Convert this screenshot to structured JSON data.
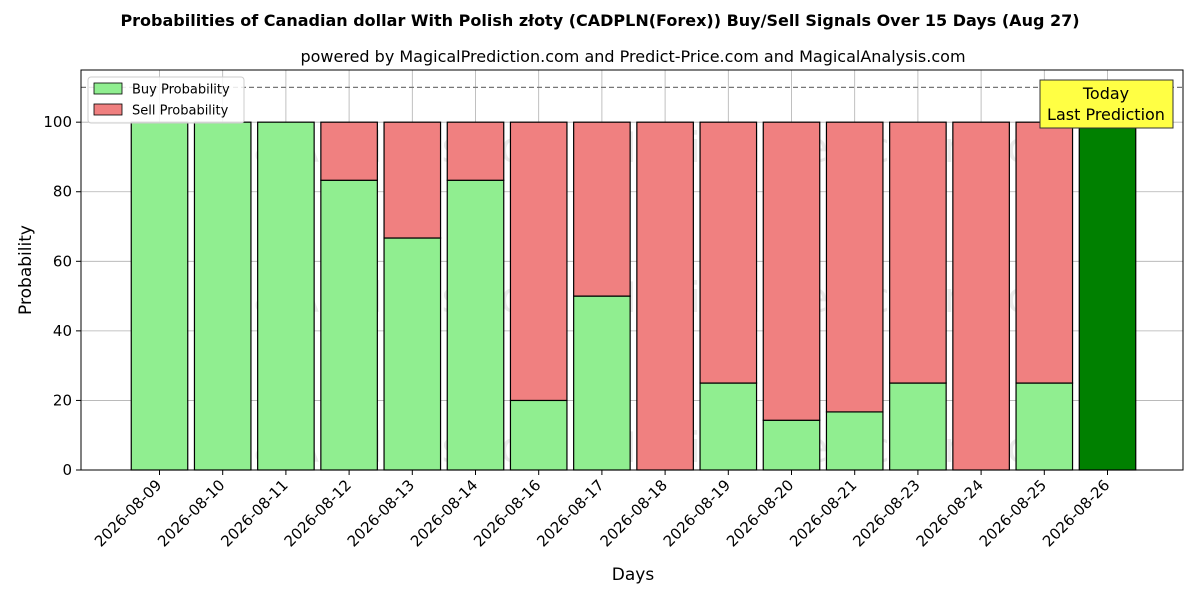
{
  "title": "Probabilities of Canadian dollar With Polish złoty (CADPLN(Forex)) Buy/Sell Signals Over 15 Days (Aug 27)",
  "subtitle": "powered by MagicalPrediction.com and Predict-Price.com and MagicalAnalysis.com",
  "watermarks": [
    "MagicalAnalysis.com",
    "MagicalPrediction.com"
  ],
  "today_box": {
    "line1": "Today",
    "line2": "Last Prediction",
    "color": "#ffff44"
  },
  "colors": {
    "buy": "#90ee90",
    "sell": "#f08080",
    "today": "#008000"
  },
  "chart_data": {
    "type": "bar",
    "stacked": true,
    "xlabel": "Days",
    "ylabel": "Probability",
    "ylim": [
      0,
      115
    ],
    "yticks": [
      0,
      20,
      40,
      60,
      80,
      100
    ],
    "reference_line": 110,
    "grid": true,
    "legend_position": "top-left",
    "categories": [
      "2026-08-09",
      "2026-08-10",
      "2026-08-11",
      "2026-08-12",
      "2026-08-13",
      "2026-08-14",
      "2026-08-16",
      "2026-08-17",
      "2026-08-18",
      "2026-08-19",
      "2026-08-20",
      "2026-08-21",
      "2026-08-23",
      "2026-08-24",
      "2026-08-25",
      "2026-08-26"
    ],
    "series": [
      {
        "name": "Buy Probability",
        "values": [
          100,
          100,
          100,
          83.3,
          66.7,
          83.3,
          20,
          50,
          0,
          25,
          14.3,
          16.7,
          25,
          0,
          25,
          100
        ]
      },
      {
        "name": "Sell Probability",
        "values": [
          0,
          0,
          0,
          16.7,
          33.3,
          16.7,
          80,
          50,
          100,
          75,
          85.7,
          83.3,
          75,
          100,
          75,
          0
        ]
      }
    ]
  }
}
